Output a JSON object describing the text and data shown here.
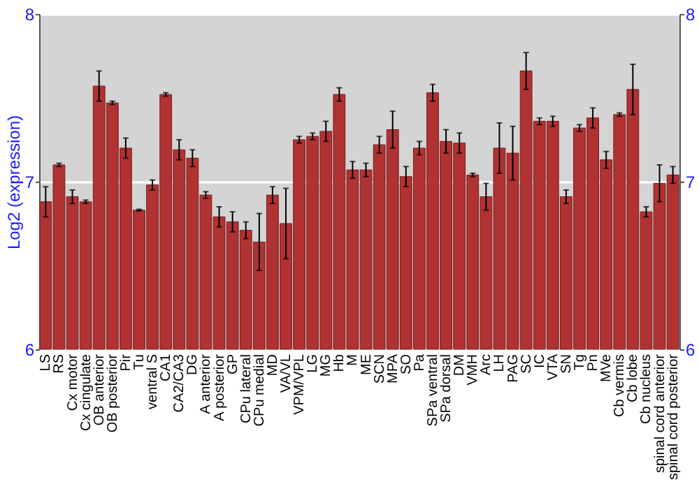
{
  "chart_data": {
    "type": "bar",
    "ylabel": "Log2 (expression)",
    "categories": [
      "LS",
      "RS",
      "Cx motor",
      "Cx cingulate",
      "OB anterior",
      "OB posterior",
      "Pir",
      "Tu",
      "ventral S",
      "CA1",
      "CA2/CA3",
      "DG",
      "A anterior",
      "A posterior",
      "GP",
      "CPu lateral",
      "CPu medial",
      "MD",
      "VA/VL",
      "VPM/VPL",
      "LG",
      "MG",
      "Hb",
      "M",
      "ME",
      "SCN",
      "MPA",
      "SO",
      "Pa",
      "SPa ventral",
      "SPa dorsal",
      "DM",
      "VMH",
      "Arc",
      "LH",
      "PAG",
      "SC",
      "IC",
      "VTA",
      "SN",
      "Tg",
      "Pn",
      "MVe",
      "Cb vermis",
      "Cb lobe",
      "Cb nucleus",
      "spinal cord anterior",
      "spinal cord posterior"
    ],
    "values": [
      6.88,
      7.1,
      6.91,
      6.88,
      7.57,
      7.47,
      7.2,
      6.83,
      6.98,
      7.52,
      7.19,
      7.14,
      6.92,
      6.79,
      6.76,
      6.71,
      6.64,
      6.92,
      6.75,
      7.25,
      7.27,
      7.3,
      7.52,
      7.07,
      7.07,
      7.22,
      7.31,
      7.03,
      7.2,
      7.53,
      7.24,
      7.23,
      7.04,
      6.91,
      7.2,
      7.17,
      7.66,
      7.36,
      7.36,
      6.91,
      7.32,
      7.38,
      7.13,
      7.4,
      7.55,
      6.82,
      6.99,
      7.04
    ],
    "errors": [
      0.09,
      0.01,
      0.04,
      0.01,
      0.09,
      0.01,
      0.06,
      0.005,
      0.03,
      0.01,
      0.06,
      0.05,
      0.02,
      0.06,
      0.06,
      0.05,
      0.17,
      0.05,
      0.21,
      0.02,
      0.02,
      0.06,
      0.04,
      0.05,
      0.04,
      0.05,
      0.11,
      0.06,
      0.04,
      0.05,
      0.07,
      0.06,
      0.01,
      0.08,
      0.15,
      0.16,
      0.11,
      0.02,
      0.03,
      0.04,
      0.02,
      0.06,
      0.05,
      0.01,
      0.15,
      0.03,
      0.11,
      0.05
    ],
    "color": "#b03232",
    "ylim": [
      6,
      8
    ],
    "yticks": [
      6,
      7,
      8
    ],
    "y2lim": [
      6,
      8
    ],
    "y2ticks": [
      6,
      7,
      8
    ],
    "grid": "y"
  }
}
